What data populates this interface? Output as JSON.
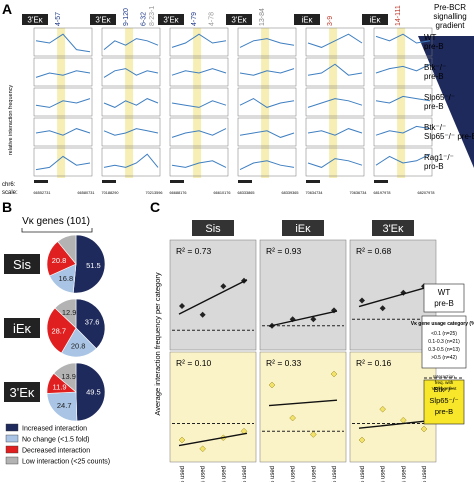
{
  "panel_a": {
    "letter": "A",
    "columns": [
      {
        "box": "3'Eκ",
        "marker": "4-57",
        "marker2": "",
        "markerColor": "#1f3a8a",
        "scaleLeft": "66552731",
        "scaleRight": "66580731"
      },
      {
        "box": "3'Eκ",
        "marker": "9-120",
        "marker2": "6-32",
        "markerColor": "#1f3a8a",
        "scaleLeft": "70188290",
        "scaleRight": "70213596"
      },
      {
        "box": "3'Eκ",
        "marker": "4-79",
        "marker2": "4-78",
        "markerColor": "#1f3a8a",
        "scaleLeft": "66688176",
        "scaleRight": "66610176"
      },
      {
        "box": "3'Eκ",
        "marker": "13-84",
        "marker2": "",
        "markerColor": "#888888",
        "scaleLeft": "68333865",
        "scaleRight": "68339365"
      },
      {
        "box": "iEκ",
        "marker": "3-9",
        "marker2": "",
        "markerColor": "#c0392b",
        "scaleLeft": "70634734",
        "scaleRight": "70636734"
      },
      {
        "box": "iEκ",
        "marker": "14-111",
        "marker2": "",
        "markerColor": "#c0392b",
        "scaleLeft": "68197978",
        "scaleRight": "68207978"
      }
    ],
    "extra_marker": "8-23-1",
    "rows": [
      "WT pre-B",
      "Btk-/- pre-B",
      "Slp65-/- pre-B",
      "Btk-/- Slp65-/- pre-B",
      "Rag1-/- pro-B"
    ],
    "row_labels": [
      {
        "line1": "WT",
        "line2": "pre-B"
      },
      {
        "line1": "Btk⁻/⁻",
        "line2": "pre-B"
      },
      {
        "line1": "Slp65⁻/⁻",
        "line2": "pre-B"
      },
      {
        "line1": "Btk⁻/⁻",
        "line2": "Slp65⁻/⁻ pre-B"
      },
      {
        "line1": "Rag1⁻/⁻",
        "line2": "pro-B"
      }
    ],
    "y_axis_label": "relative interaction frequency",
    "chr_label": "chr6:",
    "scale_label": "scale:",
    "gradient_label": [
      "Pre-BCR",
      "signalling",
      "gradient"
    ]
  },
  "panel_b": {
    "letter": "B",
    "title": "Vκ genes (101)",
    "pies": [
      {
        "label": "Sis",
        "values": [
          51.5,
          16.8,
          20.8,
          10.9
        ],
        "labels": [
          "51.5",
          "16.8",
          "20.8",
          ""
        ]
      },
      {
        "label": "iEκ",
        "values": [
          37.6,
          20.8,
          28.7,
          12.9
        ],
        "labels": [
          "37.6",
          "20.8",
          "28.7",
          "12.9"
        ]
      },
      {
        "label": "3'Eκ",
        "values": [
          49.5,
          24.7,
          11.9,
          13.9
        ],
        "labels": [
          "49.5",
          "24.7",
          "11.9",
          "13.9"
        ]
      }
    ],
    "legend": [
      {
        "label": "Increased interaction",
        "color": "#1f2a5c"
      },
      {
        "label": "No change (<1.5 fold)",
        "color": "#a9c4e4"
      },
      {
        "label": "Decreased interaction",
        "color": "#e02020"
      },
      {
        "label": "Low interaction (<25 counts)",
        "color": "#b3b3b3"
      }
    ]
  },
  "panel_c": {
    "letter": "C",
    "columns": [
      "Sis",
      "iEκ",
      "3'Eκ"
    ],
    "y_label": "Average interaction frequency per category",
    "x_categories": [
      "<0.1% used",
      "0.1-0.3% used",
      "0.3-0.5% used",
      ">0.5% used"
    ],
    "wt_label": [
      "WT",
      "pre-B"
    ],
    "dko_label": [
      "Btk⁻/⁻",
      "Slp65⁻/⁻",
      "pre-B"
    ],
    "legend_title": "Vκ gene usage category (%)",
    "legend_items": [
      "<0.1 (n=25)",
      "0.1-0.3 (n=21)",
      "0.3-0.5 (n=13)",
      ">0.5 (n=42)"
    ],
    "dash_note": [
      "Interaction",
      "freq. with",
      "Vκ fragment"
    ],
    "colors": {
      "wt_bg": "#d9d9d9",
      "dko_bg": "#fbf3c8",
      "dko_point": "#f2e26a",
      "wt_point": "#222222"
    }
  },
  "chart_data": [
    {
      "type": "scatter",
      "panel": "WT Sis",
      "r2": "R² = 0.73",
      "x": [
        1,
        2,
        3,
        4
      ],
      "y": [
        0.4,
        0.32,
        0.58,
        0.63
      ],
      "baseline": 0.18
    },
    {
      "type": "scatter",
      "panel": "WT iEκ",
      "r2": "R² = 0.93",
      "x": [
        1,
        2,
        3,
        4
      ],
      "y": [
        0.22,
        0.28,
        0.28,
        0.36
      ],
      "baseline": 0.22
    },
    {
      "type": "scatter",
      "panel": "WT 3'Eκ",
      "r2": "R² = 0.68",
      "x": [
        1,
        2,
        3,
        4
      ],
      "y": [
        0.45,
        0.38,
        0.52,
        0.58
      ],
      "baseline": 0.28
    },
    {
      "type": "scatter",
      "panel": "DKO Sis",
      "r2": "R² = 0.10",
      "x": [
        1,
        2,
        3,
        4
      ],
      "y": [
        0.2,
        0.12,
        0.22,
        0.28
      ],
      "baseline": 0.35
    },
    {
      "type": "scatter",
      "panel": "DKO iEκ",
      "r2": "R² = 0.33",
      "x": [
        1,
        2,
        3,
        4
      ],
      "y": [
        0.7,
        0.4,
        0.25,
        0.8
      ],
      "baseline": 0.28
    },
    {
      "type": "scatter",
      "panel": "DKO 3'Eκ",
      "r2": "R² = 0.16",
      "x": [
        1,
        2,
        3,
        4
      ],
      "y": [
        0.2,
        0.48,
        0.38,
        0.3
      ],
      "baseline": 0.35
    }
  ]
}
